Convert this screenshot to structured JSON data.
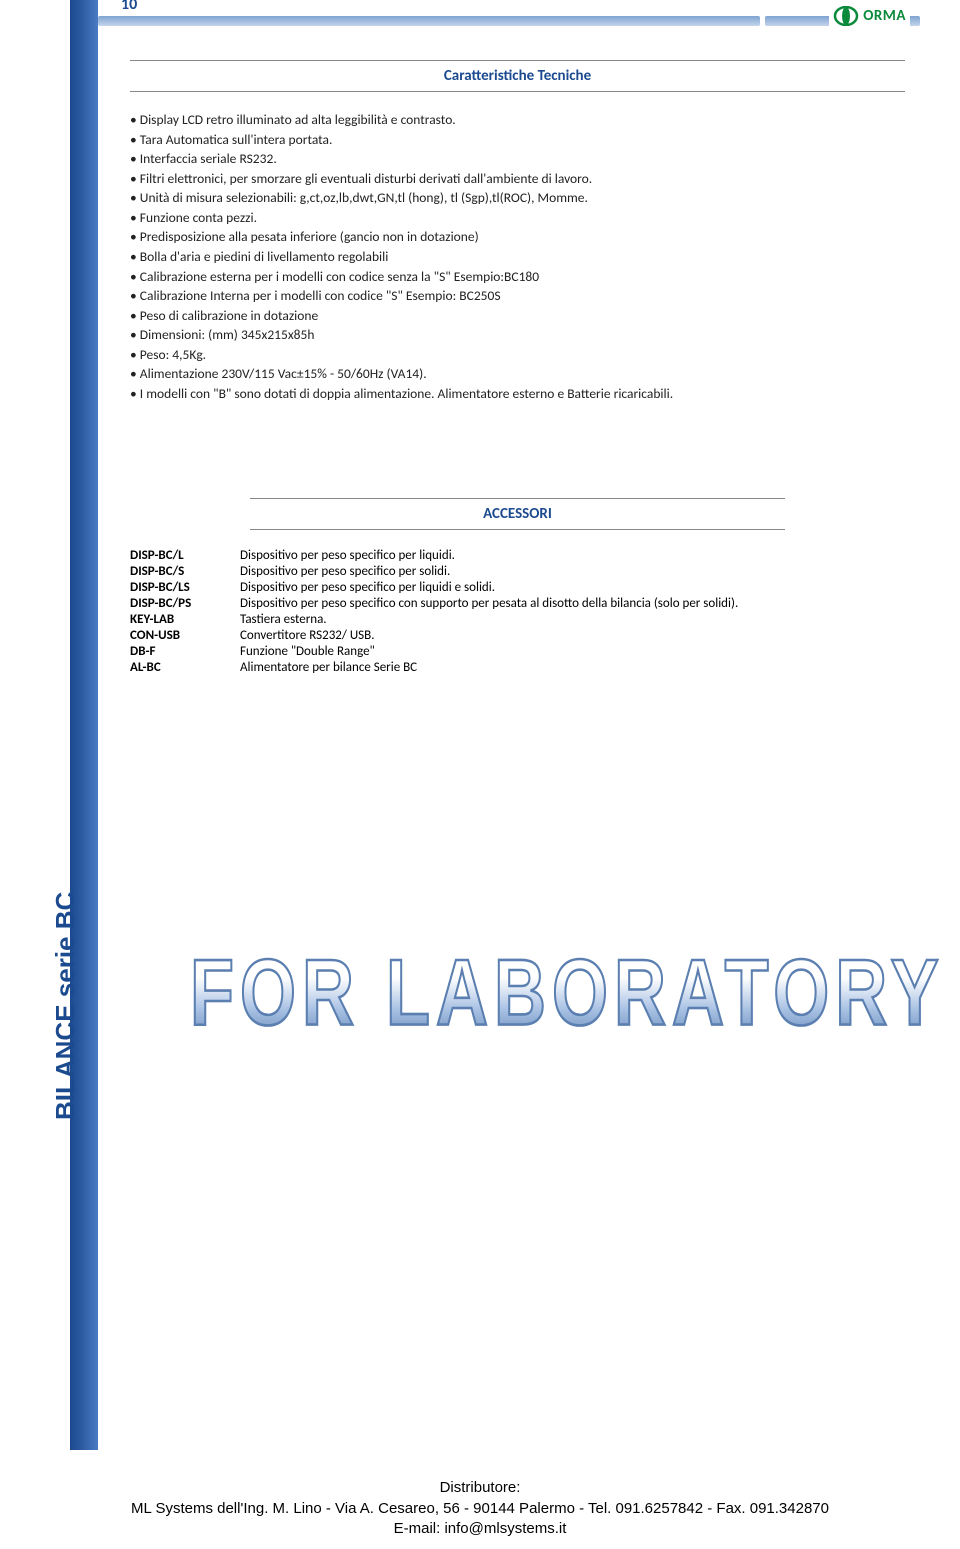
{
  "page_number": "10",
  "brand": "ORMA",
  "brand_color": "#0a8a3a",
  "header_gradient_top": "#7fa3d1",
  "header_gradient_bottom": "#c3d4eb",
  "sidebar_gradient": [
    "#1b4a8f",
    "#2c5aa0",
    "#4a7bc4"
  ],
  "title_color": "#1b4a8f",
  "section1": {
    "title": "Caratteristiche Tecniche",
    "bullets": [
      "Display LCD retro illuminato ad alta leggibilità e contrasto.",
      "Tara Automatica sull'intera portata.",
      "Interfaccia seriale RS232.",
      "Filtri elettronici, per smorzare gli eventuali disturbi derivati dall'ambiente di lavoro.",
      "Unità di misura selezionabili: g,ct,oz,lb,dwt,GN,tl (hong), tl (Sgp),tl(ROC), Momme.",
      "Funzione conta pezzi.",
      "Predisposizione alla pesata inferiore (gancio non in dotazione)",
      "Bolla d'aria e piedini di livellamento regolabili",
      "Calibrazione esterna per i modelli con codice senza la \"S\" Esempio:BC180",
      "Calibrazione Interna per i modelli con codice \"S\" Esempio: BC250S",
      "Peso di calibrazione in dotazione",
      "Dimensioni: (mm) 345x215x85h",
      "Peso: 4,5Kg.",
      "Alimentazione 230V/115 Vac±15% - 50/60Hz (VA14).",
      "I modelli con \"B\" sono dotati di doppia alimentazione. Alimentatore esterno e Batterie ricaricabili."
    ]
  },
  "section2": {
    "title": "ACCESSORI",
    "rows": [
      {
        "code": "DISP-BC/L",
        "desc": "Dispositivo per peso specifico per liquidi."
      },
      {
        "code": "DISP-BC/S",
        "desc": "Dispositivo per peso specifico per solidi."
      },
      {
        "code": "DISP-BC/LS",
        "desc": "Dispositivo per peso specifico per liquidi e solidi."
      },
      {
        "code": "DISP-BC/PS",
        "desc": "Dispositivo per peso specifico con supporto per pesata al disotto della bilancia (solo per solidi)."
      },
      {
        "code": "KEY-LAB",
        "desc": "Tastiera esterna."
      },
      {
        "code": "CON-USB",
        "desc": "Convertitore RS232/ USB."
      },
      {
        "code": "DB-F",
        "desc": "Funzione \"Double Range\""
      },
      {
        "code": "AL-BC",
        "desc": "Alimentatore per bilance Serie BC"
      }
    ]
  },
  "sidebar_label": "BILANCE serie BC",
  "watermark": "FOR LABORATORY",
  "footer": {
    "line1": "Distributore:",
    "line2": "ML Systems dell'Ing. M. Lino - Via A. Cesareo, 56  -  90144  Palermo  -  Tel. 091.6257842 - Fax. 091.342870",
    "line3": "E-mail: info@mlsystems.it"
  }
}
